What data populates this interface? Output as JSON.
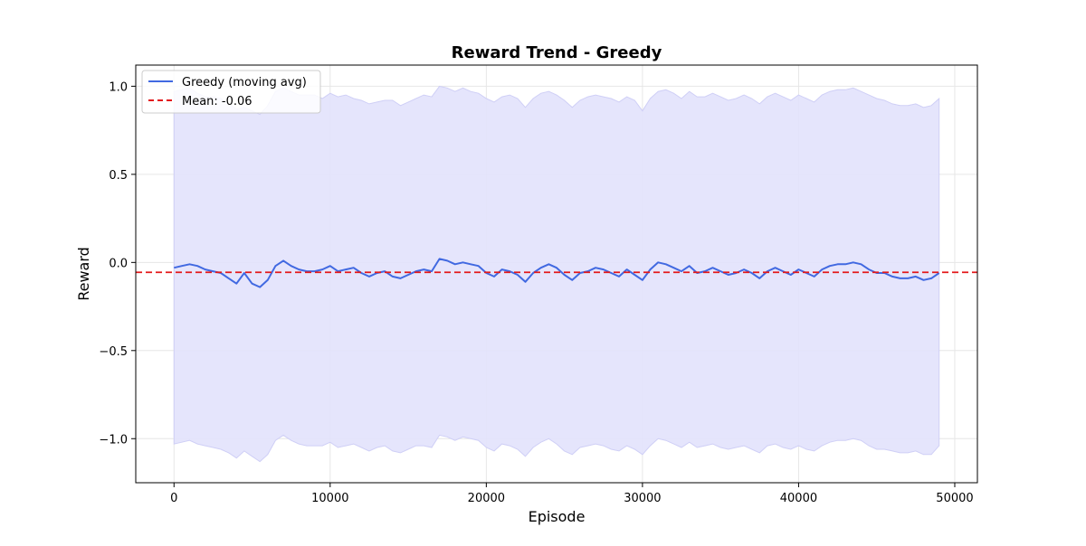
{
  "chart_data": {
    "type": "line",
    "title": "Reward Trend - Greedy",
    "xlabel": "Episode",
    "ylabel": "Reward",
    "xlim": [
      -2450,
      51450
    ],
    "ylim": [
      -1.25,
      1.12
    ],
    "xticks": [
      0,
      10000,
      20000,
      30000,
      40000,
      50000
    ],
    "xtick_labels": [
      "0",
      "10000",
      "20000",
      "30000",
      "40000",
      "50000"
    ],
    "yticks": [
      1.0,
      0.5,
      0.0,
      -0.5,
      -1.0
    ],
    "ytick_labels": [
      "1.0",
      "0.5",
      "0.0",
      "−0.5",
      "−1.0"
    ],
    "grid": true,
    "legend_position": "top-left",
    "colors": {
      "line": "#4169e1",
      "band": "#e2e2fc",
      "band_edge": "#cfcff6",
      "mean": "#e31a1c",
      "grid": "#e6e6e6"
    },
    "series": [
      {
        "name": "Greedy (moving avg)",
        "style": "solid",
        "x": [
          0,
          500,
          1000,
          1500,
          2000,
          2500,
          3000,
          3500,
          4000,
          4500,
          5000,
          5500,
          6000,
          6500,
          7000,
          7500,
          8000,
          8500,
          9000,
          9500,
          10000,
          10500,
          11000,
          11500,
          12000,
          12500,
          13000,
          13500,
          14000,
          14500,
          15000,
          15500,
          16000,
          16500,
          17000,
          17500,
          18000,
          18500,
          19000,
          19500,
          20000,
          20500,
          21000,
          21500,
          22000,
          22500,
          23000,
          23500,
          24000,
          24500,
          25000,
          25500,
          26000,
          26500,
          27000,
          27500,
          28000,
          28500,
          29000,
          29500,
          30000,
          30500,
          31000,
          31500,
          32000,
          32500,
          33000,
          33500,
          34000,
          34500,
          35000,
          35500,
          36000,
          36500,
          37000,
          37500,
          38000,
          38500,
          39000,
          39500,
          40000,
          40500,
          41000,
          41500,
          42000,
          42500,
          43000,
          43500,
          44000,
          44500,
          45000,
          45500,
          46000,
          46500,
          47000,
          47500,
          48000,
          48500,
          49000
        ],
        "y": [
          -0.03,
          -0.02,
          -0.01,
          -0.02,
          -0.04,
          -0.05,
          -0.06,
          -0.09,
          -0.12,
          -0.06,
          -0.12,
          -0.14,
          -0.1,
          -0.02,
          0.01,
          -0.02,
          -0.04,
          -0.05,
          -0.05,
          -0.04,
          -0.02,
          -0.05,
          -0.04,
          -0.03,
          -0.06,
          -0.08,
          -0.06,
          -0.05,
          -0.08,
          -0.09,
          -0.07,
          -0.05,
          -0.04,
          -0.05,
          0.02,
          0.01,
          -0.01,
          0.0,
          -0.01,
          -0.02,
          -0.06,
          -0.08,
          -0.04,
          -0.05,
          -0.07,
          -0.11,
          -0.06,
          -0.03,
          -0.01,
          -0.03,
          -0.07,
          -0.1,
          -0.06,
          -0.05,
          -0.03,
          -0.04,
          -0.06,
          -0.08,
          -0.04,
          -0.07,
          -0.1,
          -0.04,
          0.0,
          -0.01,
          -0.03,
          -0.05,
          -0.02,
          -0.06,
          -0.05,
          -0.03,
          -0.05,
          -0.07,
          -0.06,
          -0.04,
          -0.06,
          -0.09,
          -0.05,
          -0.03,
          -0.05,
          -0.07,
          -0.04,
          -0.06,
          -0.08,
          -0.04,
          -0.02,
          -0.01,
          -0.01,
          0.0,
          -0.01,
          -0.04,
          -0.06,
          -0.06,
          -0.08,
          -0.09,
          -0.09,
          -0.08,
          -0.1,
          -0.09,
          -0.06
        ],
        "upper": [
          0.97,
          0.98,
          0.99,
          0.96,
          0.94,
          0.94,
          0.93,
          0.9,
          0.87,
          0.88,
          0.86,
          0.84,
          0.89,
          0.97,
          0.99,
          0.97,
          0.95,
          0.95,
          0.95,
          0.93,
          0.96,
          0.94,
          0.95,
          0.93,
          0.92,
          0.9,
          0.91,
          0.92,
          0.92,
          0.89,
          0.91,
          0.93,
          0.95,
          0.94,
          1.0,
          0.99,
          0.97,
          0.99,
          0.97,
          0.96,
          0.93,
          0.91,
          0.94,
          0.95,
          0.93,
          0.88,
          0.93,
          0.96,
          0.97,
          0.95,
          0.92,
          0.88,
          0.92,
          0.94,
          0.95,
          0.94,
          0.93,
          0.91,
          0.94,
          0.92,
          0.86,
          0.93,
          0.97,
          0.98,
          0.96,
          0.93,
          0.97,
          0.94,
          0.94,
          0.96,
          0.94,
          0.92,
          0.93,
          0.95,
          0.93,
          0.9,
          0.94,
          0.96,
          0.94,
          0.92,
          0.95,
          0.93,
          0.91,
          0.95,
          0.97,
          0.98,
          0.98,
          0.99,
          0.97,
          0.95,
          0.93,
          0.92,
          0.9,
          0.89,
          0.89,
          0.9,
          0.88,
          0.89,
          0.93
        ],
        "lower": [
          -1.03,
          -1.02,
          -1.01,
          -1.03,
          -1.04,
          -1.05,
          -1.06,
          -1.08,
          -1.11,
          -1.07,
          -1.1,
          -1.13,
          -1.09,
          -1.01,
          -0.98,
          -1.01,
          -1.03,
          -1.04,
          -1.04,
          -1.04,
          -1.02,
          -1.05,
          -1.04,
          -1.03,
          -1.05,
          -1.07,
          -1.05,
          -1.04,
          -1.07,
          -1.08,
          -1.06,
          -1.04,
          -1.04,
          -1.05,
          -0.98,
          -0.99,
          -1.01,
          -0.99,
          -1.0,
          -1.01,
          -1.05,
          -1.07,
          -1.03,
          -1.04,
          -1.06,
          -1.1,
          -1.05,
          -1.02,
          -1.0,
          -1.03,
          -1.07,
          -1.09,
          -1.05,
          -1.04,
          -1.03,
          -1.04,
          -1.06,
          -1.07,
          -1.04,
          -1.06,
          -1.09,
          -1.04,
          -1.0,
          -1.01,
          -1.03,
          -1.05,
          -1.02,
          -1.05,
          -1.04,
          -1.03,
          -1.05,
          -1.06,
          -1.05,
          -1.04,
          -1.06,
          -1.08,
          -1.04,
          -1.03,
          -1.05,
          -1.06,
          -1.04,
          -1.06,
          -1.07,
          -1.04,
          -1.02,
          -1.01,
          -1.01,
          -1.0,
          -1.01,
          -1.04,
          -1.06,
          -1.06,
          -1.07,
          -1.08,
          -1.08,
          -1.07,
          -1.09,
          -1.09,
          -1.04
        ]
      },
      {
        "name": "Mean: -0.06",
        "style": "dashed",
        "value": -0.056
      }
    ]
  }
}
